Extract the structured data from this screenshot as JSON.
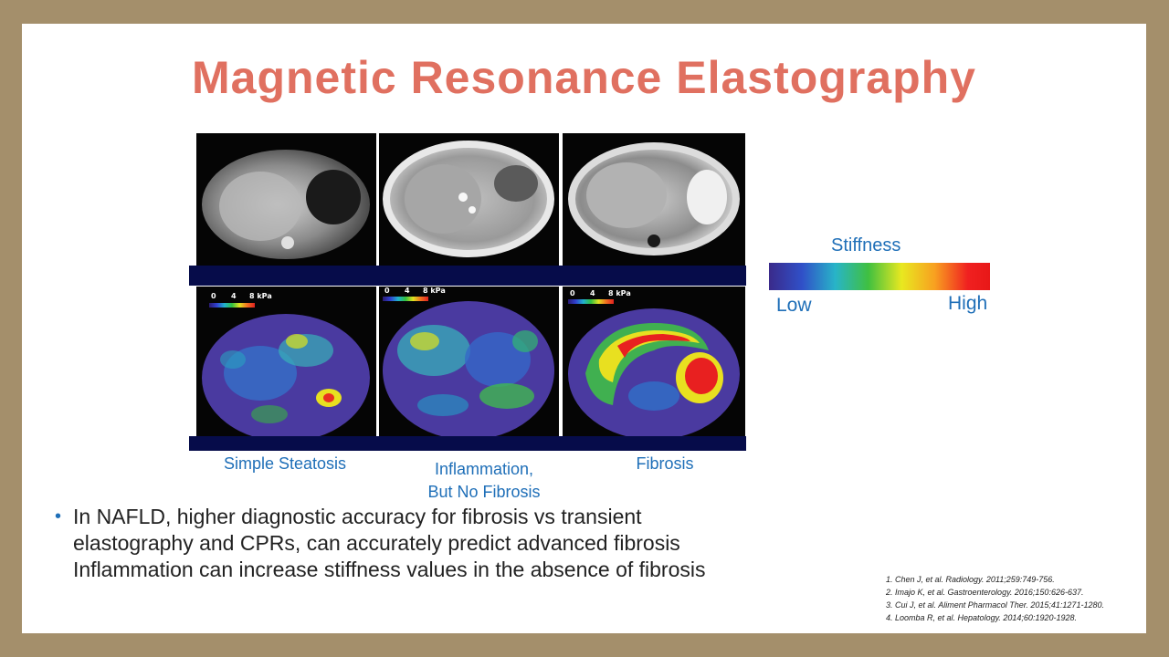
{
  "title": "Magnetic Resonance Elastography",
  "panels": [
    {
      "caption_lines": [
        "Simple Steatosis"
      ]
    },
    {
      "caption_lines": [
        "Inflammation,",
        "But No Fibrosis"
      ]
    },
    {
      "caption_lines": [
        "Fibrosis"
      ]
    }
  ],
  "scale_labels": {
    "zero": "0",
    "four": "4",
    "eight": "8 kPa"
  },
  "legend": {
    "title": "Stiffness",
    "low": "Low",
    "high": "High"
  },
  "bullet": {
    "lines": [
      "In NAFLD, higher diagnostic accuracy for fibrosis vs transient",
      "elastography and CPRs, can accurately predict advanced fibrosis",
      "Inflammation can increase stiffness values in the absence of fibrosis"
    ]
  },
  "references": [
    "1. Chen J, et al. Radiology. 2011;259:749-756.",
    "2. Imajo K, et al. Gastroenterology. 2016;150:626-637.",
    "3. Cui J, et al. Aliment Pharmacol Ther. 2015;41:1271-1280.",
    "4. Loomba R, et al. Hepatology. 2014;60:1920-1928."
  ],
  "colors": {
    "title": "#e07060",
    "accent_blue": "#1f6fb8",
    "frame": "#a48f6b",
    "navy_band": "#060c4a"
  }
}
